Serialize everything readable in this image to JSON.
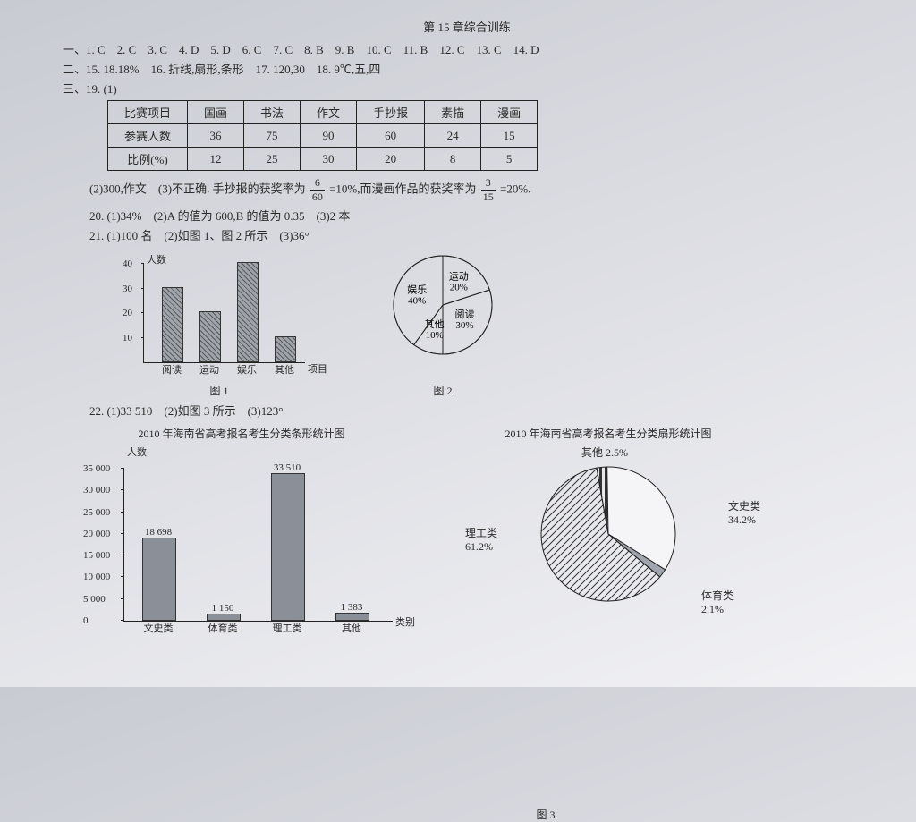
{
  "title": "第 15 章综合训练",
  "answers_line1": "一、1. C　2. C　3. C　4. D　5. D　6. C　7. C　8. B　9. B　10. C　11. B　12. C　13. C　14. D",
  "answers_line2": "二、15. 18.18%　16. 折线,扇形,条形　17. 120,30　18. 9℃,五,四",
  "q19_prefix": "三、19. (1)",
  "table19": {
    "headers": [
      "比赛项目",
      "国画",
      "书法",
      "作文",
      "手抄报",
      "素描",
      "漫画"
    ],
    "row1": [
      "参赛人数",
      "36",
      "75",
      "90",
      "60",
      "24",
      "15"
    ],
    "row2": [
      "比例(%)",
      "12",
      "25",
      "30",
      "20",
      "8",
      "5"
    ]
  },
  "q19_part2a": "(2)300,作文　(3)不正确. 手抄报的获奖率为 ",
  "frac1_n": "6",
  "frac1_d": "60",
  "q19_part2b": " =10%,而漫画作品的获奖率为 ",
  "frac2_n": "3",
  "frac2_d": "15",
  "q19_part2c": " =20%.",
  "q20": "20. (1)34%　(2)A 的值为 600,B 的值为 0.35　(3)2 本",
  "q21": "21. (1)100 名　(2)如图 1、图 2 所示　(3)36°",
  "bar1": {
    "ylabel": "人数",
    "xlabel": "项目",
    "ymax": 40,
    "ytick_step": 10,
    "categories": [
      "阅读",
      "运动",
      "娱乐",
      "其他"
    ],
    "values": [
      30,
      20,
      40,
      10
    ],
    "caption": "图 1"
  },
  "pie1": {
    "slices": [
      {
        "label": "运动",
        "pct": 20
      },
      {
        "label": "阅读",
        "pct": 30
      },
      {
        "label": "其他",
        "pct": 10
      },
      {
        "label": "娱乐",
        "pct": 40
      }
    ],
    "caption": "图 2"
  },
  "q22": "22. (1)33 510　(2)如图 3 所示　(3)123°",
  "bar2": {
    "title": "2010 年海南省高考报名考生分类条形统计图",
    "ylabel": "人数",
    "xlabel": "类别",
    "ymax": 35000,
    "ytick_step": 5000,
    "categories": [
      "文史类",
      "体育类",
      "理工类",
      "其他"
    ],
    "values": [
      18698,
      1150,
      33510,
      1383
    ],
    "value_labels": [
      "18 698",
      "1 150",
      "33 510",
      "1 383"
    ]
  },
  "pie2": {
    "title": "2010 年海南省高考报名考生分类扇形统计图",
    "slices": [
      {
        "label": "其他",
        "pct": "2.5%"
      },
      {
        "label": "文史类",
        "pct": "34.2%"
      },
      {
        "label": "体育类",
        "pct": "2.1%"
      },
      {
        "label": "理工类",
        "pct": "61.2%"
      }
    ],
    "caption": "图 3"
  }
}
